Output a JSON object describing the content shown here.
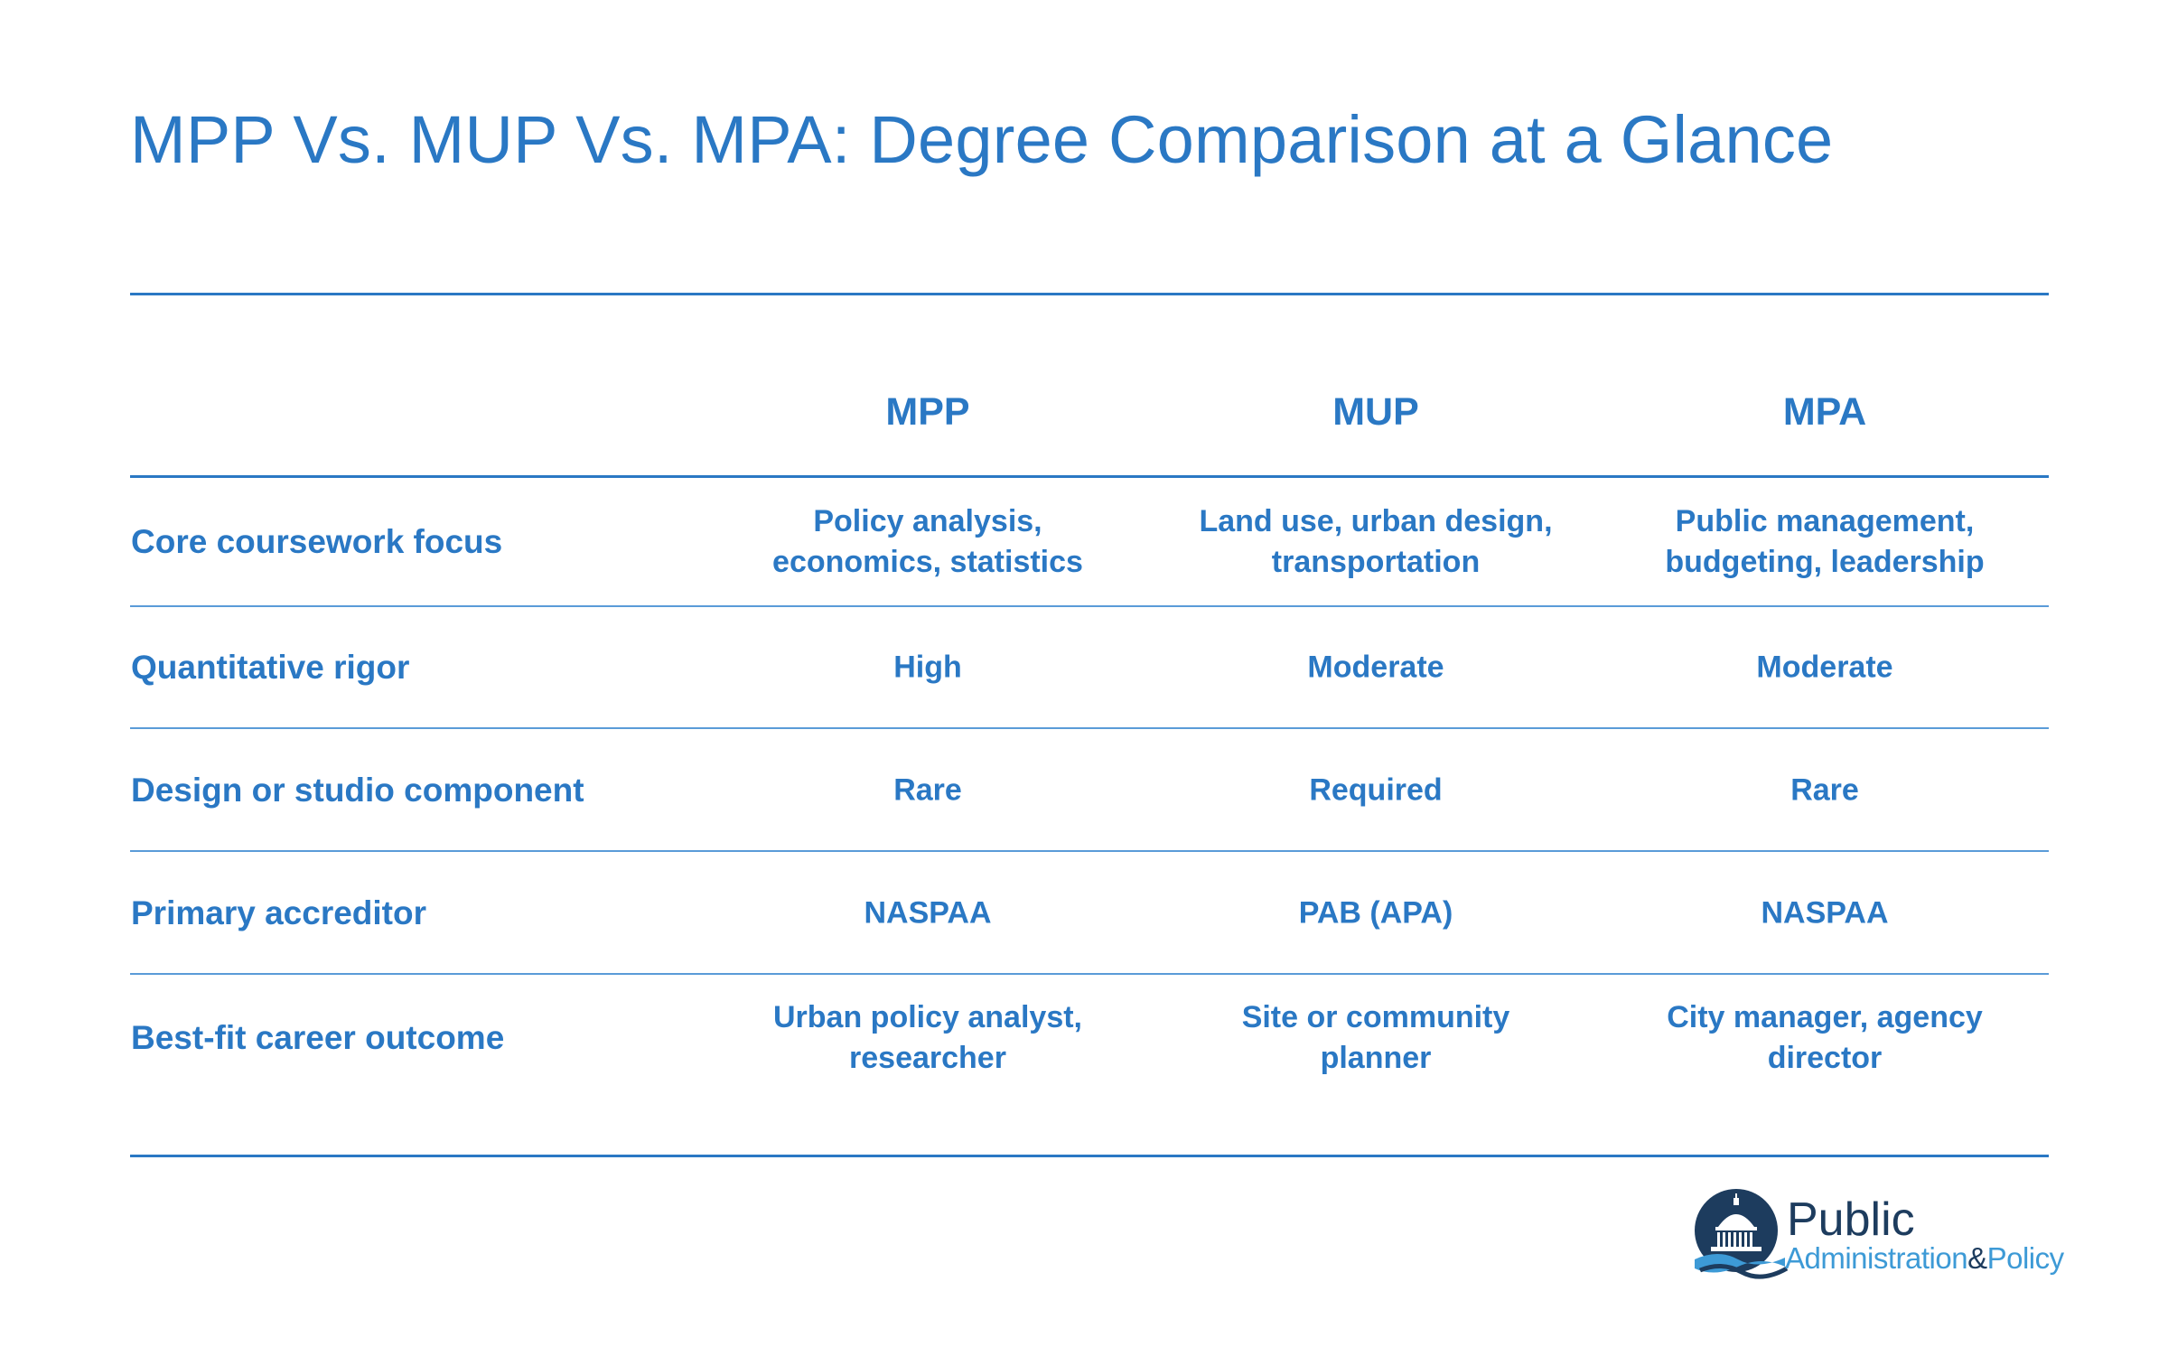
{
  "title": "MPP Vs. MUP Vs. MPA: Degree Comparison at a Glance",
  "colors": {
    "accent": "#2a78c4",
    "rule_light": "#5a9bd8",
    "logo_dark": "#1d3c5e",
    "logo_light": "#3d9ad6"
  },
  "chart_data": {
    "type": "table",
    "columns": [
      "MPP",
      "MUP",
      "MPA"
    ],
    "rows": [
      {
        "label": "Core coursework focus",
        "values": [
          "Policy analysis, economics, statistics",
          "Land use, urban design, transportation",
          "Public management, budgeting, leadership"
        ]
      },
      {
        "label": "Quantitative rigor",
        "values": [
          "High",
          "Moderate",
          "Moderate"
        ]
      },
      {
        "label": "Design or studio component",
        "values": [
          "Rare",
          "Required",
          "Rare"
        ]
      },
      {
        "label": "Primary accreditor",
        "values": [
          "NASPAA",
          "PAB (APA)",
          "NASPAA"
        ]
      },
      {
        "label": "Best-fit career outcome",
        "values": [
          "Urban policy analyst, researcher",
          "Site or community planner",
          "City manager, agency director"
        ]
      }
    ]
  },
  "logo": {
    "word": "Public",
    "sub": "Administration",
    "amp": "&",
    "sub2": "Policy",
    "icon": "capitol-dome-icon"
  }
}
